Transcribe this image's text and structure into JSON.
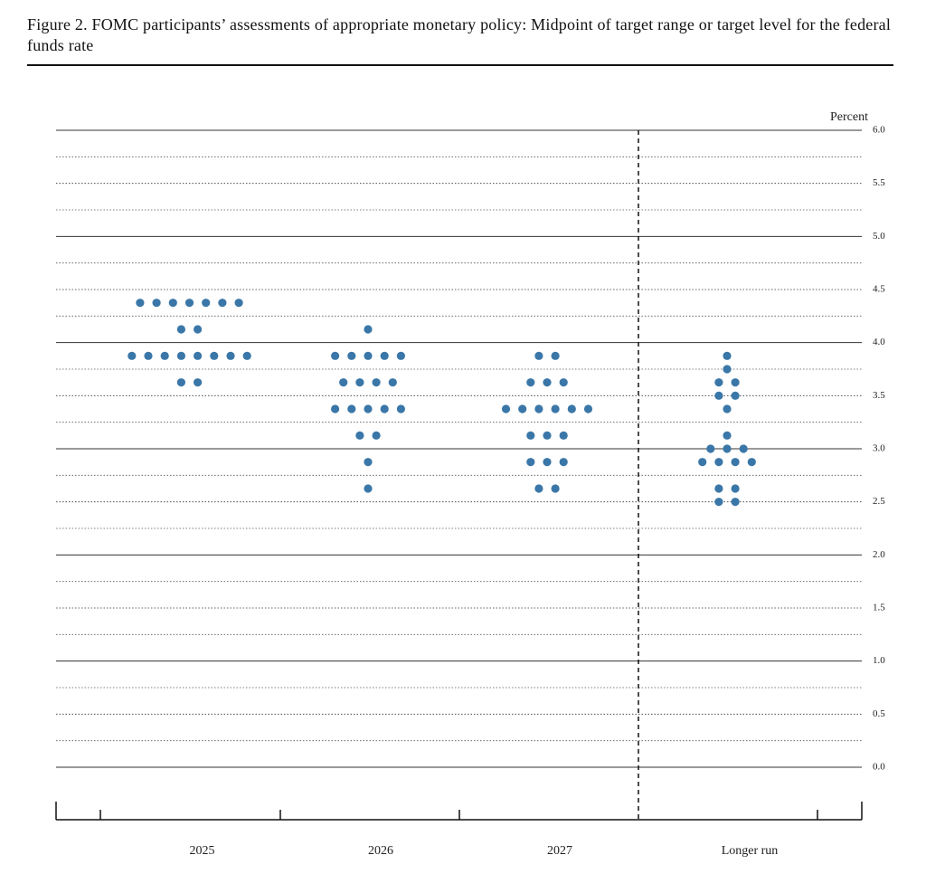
{
  "chart_data": {
    "type": "dot",
    "title": "Figure 2.  FOMC participants’ assessments of appropriate monetary policy: Midpoint of target range or target level for the federal funds rate",
    "y_label": "Percent",
    "categories": [
      "2025",
      "2026",
      "2027",
      "Longer run"
    ],
    "color": "#3a77a8",
    "values": [
      [
        4.375,
        4.375,
        4.375,
        4.375,
        4.375,
        4.375,
        4.375,
        4.125,
        4.125,
        3.875,
        3.875,
        3.875,
        3.875,
        3.875,
        3.875,
        3.875,
        3.875,
        3.625,
        3.625
      ],
      [
        4.125,
        3.875,
        3.875,
        3.875,
        3.875,
        3.875,
        3.625,
        3.625,
        3.625,
        3.625,
        3.375,
        3.375,
        3.375,
        3.375,
        3.375,
        3.125,
        3.125,
        2.875,
        2.625
      ],
      [
        3.875,
        3.875,
        3.625,
        3.625,
        3.625,
        3.375,
        3.375,
        3.375,
        3.375,
        3.375,
        3.375,
        3.125,
        3.125,
        3.125,
        2.875,
        2.875,
        2.875,
        2.625,
        2.625
      ],
      [
        3.875,
        3.75,
        3.625,
        3.625,
        3.5,
        3.5,
        3.375,
        3.125,
        3.0,
        3.0,
        3.0,
        2.875,
        2.875,
        2.875,
        2.875,
        2.625,
        2.625,
        2.5,
        2.5
      ]
    ],
    "ylim": [
      0,
      6
    ],
    "yticks": [
      {
        "value": 0,
        "label": "0.0"
      },
      0.5,
      {
        "value": 1,
        "label": "1.0"
      },
      1.5,
      {
        "value": 2,
        "label": "2.0"
      },
      2.5,
      {
        "value": 3,
        "label": "3.0"
      },
      3.5,
      {
        "value": 4,
        "label": "4.0"
      },
      4.5,
      {
        "value": 5,
        "label": "5.0"
      },
      5.5,
      {
        "value": 6,
        "label": "6.0"
      }
    ],
    "minor_yticks": [
      0.25,
      0.75,
      1.25,
      1.75,
      2.25,
      2.75,
      3.25,
      3.75,
      4.25,
      4.75,
      5.25,
      5.75
    ],
    "grid": true
  }
}
